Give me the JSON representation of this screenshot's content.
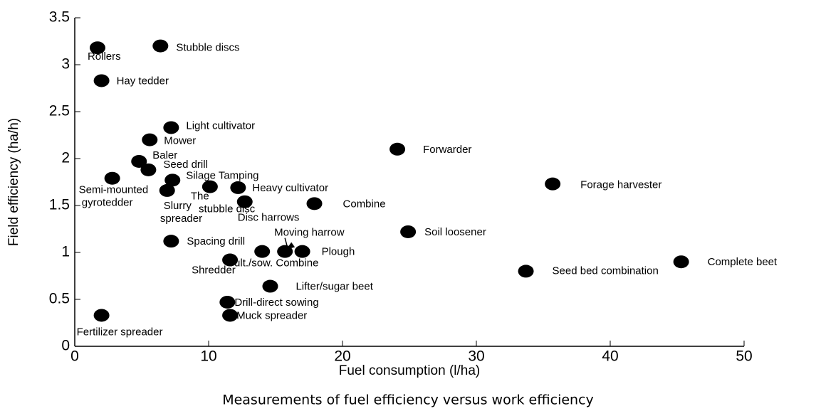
{
  "chart_data": {
    "type": "scatter",
    "xlabel": "Fuel consumption (l/ha)",
    "ylabel": "Field efficiency (ha/h)",
    "caption": "Measurements of fuel efficiency versus work efficiency",
    "labels": [
      "Rollers",
      "Stubble discs",
      "Hay tedder",
      "Light cultivator",
      "Mower",
      "Forwarder",
      "Baler",
      "Seed drill",
      "Semi-mounted gyrotedder",
      "Silage Tamping",
      "Slurry spreader",
      "The stubble disc",
      "Heavy cultivator",
      "Disc harrows",
      "Combine",
      "Forage harvester",
      "Soil loosener",
      "Spacing drill",
      "Cult./sow. Combine",
      "Moving harrow",
      "Plough",
      "Shredder",
      "Complete beet",
      "Seed bed combination",
      "Lifter/sugar beet",
      "Drill-direct sowing",
      "Muck spreader",
      "Fertilizer spreader"
    ],
    "x": [
      1.7,
      6.4,
      2.0,
      7.2,
      5.6,
      24.1,
      4.8,
      5.5,
      2.8,
      7.3,
      6.9,
      10.1,
      12.2,
      12.7,
      17.9,
      35.7,
      24.9,
      7.2,
      14.0,
      15.7,
      17.0,
      11.6,
      45.3,
      33.7,
      14.6,
      11.4,
      11.6,
      2.0
    ],
    "values": [
      3.18,
      3.2,
      2.83,
      2.33,
      2.2,
      2.1,
      1.97,
      1.88,
      1.79,
      1.77,
      1.66,
      1.7,
      1.69,
      1.54,
      1.52,
      1.73,
      1.22,
      1.12,
      1.01,
      1.01,
      1.01,
      0.92,
      0.9,
      0.8,
      0.64,
      0.47,
      0.33,
      0.33
    ],
    "color": "#000000",
    "xlim": [
      0,
      50
    ],
    "xticks": [
      0,
      10,
      20,
      30,
      40,
      50
    ],
    "ylim": [
      0,
      3.5
    ],
    "yticks": [
      0,
      0.5,
      1,
      1.5,
      2,
      2.5,
      3,
      3.5
    ]
  }
}
